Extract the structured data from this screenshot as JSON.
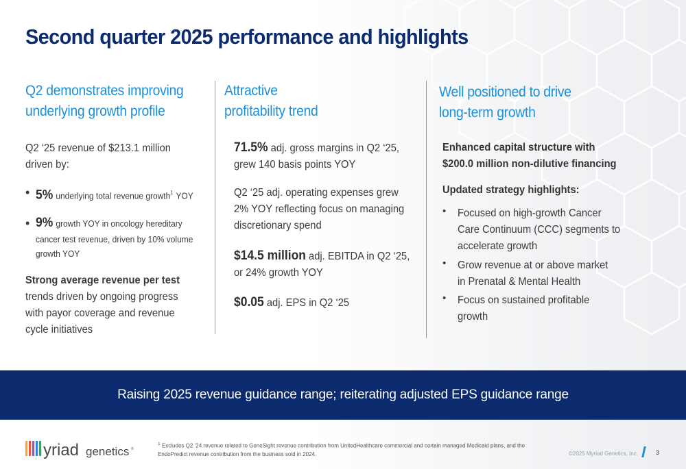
{
  "title": "Second quarter 2025 performance and highlights",
  "col1": {
    "heading_l1": "Q2 demonstrates improving",
    "heading_l2": "underlying growth profile",
    "intro_l1": "Q2 ‘25 revenue of $213.1 million",
    "intro_l2": "driven by:",
    "b1_value": "5%",
    "b1_text": "underlying total revenue growth",
    "b1_sup": "1",
    "b1_tail": "YOY",
    "b2_value": "9%",
    "b2_text_l1": "growth YOY in oncology hereditary",
    "b2_text_l2": "cancer test revenue, driven by 10% volume",
    "b2_text_l3": "growth YOY",
    "p_bold": "Strong average revenue per test",
    "p_l2": "trends driven by ongoing progress",
    "p_l3": "with payor coverage and revenue",
    "p_l4": "cycle initiatives"
  },
  "col2": {
    "heading_l1": "Attractive",
    "heading_l2": "profitability trend",
    "m1_value": "71.5%",
    "m1_text_l1": "adj. gross margins in Q2 ‘25,",
    "m1_text_l2": "grew 140 basis points YOY",
    "opex_l1": "Q2 ‘25 adj. operating expenses grew",
    "opex_l2": "2% YOY reflecting focus on managing",
    "opex_l3": "discretionary spend",
    "m2_value": "$14.5 million",
    "m2_text_l1": "adj. EBITDA in Q2 ‘25,",
    "m2_text_l2": "or 24% growth YOY",
    "m3_value": "$0.05",
    "m3_text": "adj. EPS in Q2 ‘25"
  },
  "col3": {
    "heading_l1": "Well positioned to drive",
    "heading_l2": "long-term growth",
    "cap_l1": "Enhanced capital structure with",
    "cap_l2": "$200.0 million non-dilutive financing",
    "strategy_head": "Updated strategy highlights:",
    "s1_l1": "Focused on high-growth Cancer",
    "s1_l2": "Care Continuum (CCC) segments to",
    "s1_l3": "accelerate growth",
    "s2_l1": "Grow revenue at or above market",
    "s2_l2": "in Prenatal & Mental Health",
    "s3_l1": "Focus on sustained profitable",
    "s3_l2": "growth"
  },
  "banner": "Raising 2025 revenue guidance range; reiterating adjusted EPS guidance range",
  "footer": {
    "logo_word1": "Myriad",
    "logo_word2": "genetics",
    "footnote_sup": "1",
    "footnote_l1": "Excludes Q2 ‘24 revenue related to GeneSight revenue contribution from UnitedHealthcare commercial and certain managed Medicaid plans, and the",
    "footnote_l2": "EndoPredict revenue contribution from the business sold in 2024.",
    "copyright": "©2025 Myriad Genetics, Inc.",
    "page_number": "3"
  },
  "colors": {
    "navy": "#0c2a6e",
    "accent_blue": "#1f8fd6",
    "logo_m_gradient": [
      "#f5a623",
      "#e8534a",
      "#9b59b6",
      "#2e86de",
      "#27ae60"
    ]
  }
}
